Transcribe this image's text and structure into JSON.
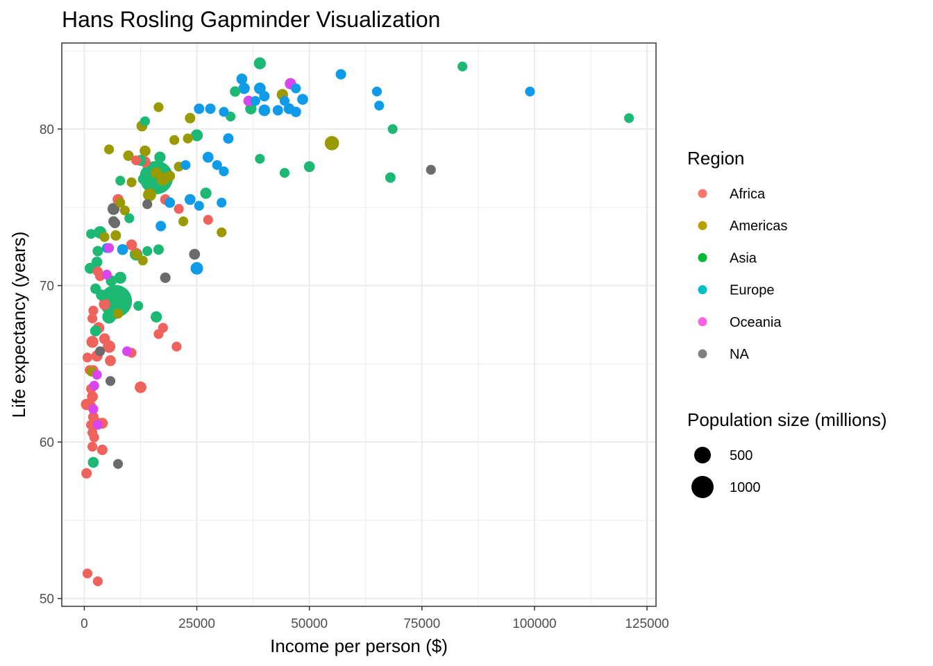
{
  "chart_data": {
    "type": "scatter",
    "title": "Hans Rosling Gapminder Visualization",
    "xlabel": "Income per person ($)",
    "ylabel": "Life expectancy (years)",
    "xlim": [
      -5000,
      127000
    ],
    "ylim": [
      49.5,
      85.5
    ],
    "xticks": [
      0,
      25000,
      50000,
      75000,
      100000,
      125000
    ],
    "yticks": [
      50,
      60,
      70,
      80
    ],
    "grid": true,
    "legend_position": "right",
    "color_legend": {
      "title": "Region",
      "entries": [
        {
          "name": "Africa",
          "color": "#F8766D"
        },
        {
          "name": "Americas",
          "color": "#B79F00"
        },
        {
          "name": "Asia",
          "color": "#00BA38"
        },
        {
          "name": "Europe",
          "color": "#00BFC4"
        },
        {
          "name": "Oceania",
          "color": "#F564E3"
        },
        {
          "name": "NA",
          "color": "#808080"
        }
      ]
    },
    "size_legend": {
      "title": "Population size (millions)",
      "entries": [
        500,
        1000
      ]
    },
    "series": [
      {
        "name": "Africa",
        "color": "#F0625C",
        "points": [
          [
            700,
            51.6,
            5
          ],
          [
            3000,
            51.1,
            5
          ],
          [
            500,
            58.0,
            10
          ],
          [
            1800,
            59.7,
            5
          ],
          [
            4000,
            59.5,
            10
          ],
          [
            1500,
            61.1,
            5
          ],
          [
            2000,
            61.0,
            5
          ],
          [
            2200,
            60.3,
            5
          ],
          [
            1800,
            60.6,
            5
          ],
          [
            2500,
            61.3,
            10
          ],
          [
            4000,
            61.2,
            15
          ],
          [
            500,
            62.4,
            20
          ],
          [
            2000,
            61.6,
            10
          ],
          [
            1500,
            62.3,
            5
          ],
          [
            1800,
            62.9,
            15
          ],
          [
            1500,
            63.4,
            5
          ],
          [
            12500,
            63.5,
            25
          ],
          [
            2000,
            64.6,
            5
          ],
          [
            1200,
            64.6,
            5
          ],
          [
            700,
            65.4,
            5
          ],
          [
            2800,
            65.5,
            20
          ],
          [
            5800,
            65.2,
            15
          ],
          [
            10500,
            65.7,
            5
          ],
          [
            1800,
            66.4,
            30
          ],
          [
            4500,
            66.6,
            15
          ],
          [
            5500,
            66.1,
            40
          ],
          [
            16500,
            66.9,
            5
          ],
          [
            20500,
            66.1,
            5
          ],
          [
            3200,
            67.3,
            20
          ],
          [
            1800,
            67.9,
            5
          ],
          [
            2000,
            68.4,
            5
          ],
          [
            4500,
            68.8,
            20
          ],
          [
            17500,
            67.3,
            5
          ],
          [
            3000,
            70.9,
            5
          ],
          [
            3500,
            70.6,
            5
          ],
          [
            11500,
            72.1,
            5
          ],
          [
            10500,
            72.6,
            15
          ],
          [
            7500,
            75.5,
            15
          ],
          [
            21000,
            74.9,
            5
          ],
          [
            18000,
            75.5,
            10
          ],
          [
            27500,
            74.2,
            5
          ],
          [
            11500,
            78.0,
            5
          ],
          [
            13500,
            77.9,
            15
          ]
        ]
      },
      {
        "name": "Americas",
        "color": "#9A9A00",
        "points": [
          [
            1600,
            64.5,
            5
          ],
          [
            7500,
            68.2,
            5
          ],
          [
            13000,
            71.6,
            5
          ],
          [
            11500,
            72.0,
            5
          ],
          [
            7000,
            73.2,
            10
          ],
          [
            4500,
            73.1,
            5
          ],
          [
            22000,
            74.1,
            5
          ],
          [
            30500,
            73.4,
            5
          ],
          [
            8000,
            75.3,
            5
          ],
          [
            9000,
            74.8,
            5
          ],
          [
            14500,
            75.8,
            50
          ],
          [
            17500,
            76.8,
            40
          ],
          [
            19000,
            77.0,
            10
          ],
          [
            10500,
            76.6,
            5
          ],
          [
            16000,
            77.2,
            15
          ],
          [
            9800,
            78.3,
            10
          ],
          [
            13500,
            78.6,
            15
          ],
          [
            12800,
            80.2,
            15
          ],
          [
            20000,
            79.3,
            5
          ],
          [
            21000,
            77.6,
            5
          ],
          [
            23000,
            79.4,
            5
          ],
          [
            23500,
            80.7,
            10
          ],
          [
            16500,
            81.4,
            5
          ],
          [
            5500,
            78.7,
            5
          ],
          [
            44000,
            82.2,
            20
          ],
          [
            55000,
            79.1,
            80
          ]
        ]
      },
      {
        "name": "Asia",
        "color": "#1DB873",
        "points": [
          [
            2000,
            58.7,
            15
          ],
          [
            1300,
            71.1,
            15
          ],
          [
            2800,
            71.5,
            15
          ],
          [
            1500,
            73.3,
            5
          ],
          [
            3500,
            73.4,
            40
          ],
          [
            3000,
            72.2,
            10
          ],
          [
            6000,
            70.3,
            15
          ],
          [
            8000,
            70.5,
            30
          ],
          [
            2500,
            69.8,
            10
          ],
          [
            3800,
            69.4,
            15
          ],
          [
            2500,
            67.1,
            15
          ],
          [
            6500,
            68.2,
            30
          ],
          [
            7000,
            69.0,
            1300
          ],
          [
            5500,
            68.0,
            60
          ],
          [
            11500,
            72.0,
            40
          ],
          [
            12000,
            68.7,
            5
          ],
          [
            16000,
            68.0,
            20
          ],
          [
            16500,
            72.3,
            10
          ],
          [
            14000,
            72.2,
            5
          ],
          [
            10000,
            74.3,
            5
          ],
          [
            16000,
            76.9,
            1400
          ],
          [
            13000,
            76.8,
            5
          ],
          [
            8000,
            76.7,
            5
          ],
          [
            12500,
            78.0,
            15
          ],
          [
            16800,
            78.2,
            20
          ],
          [
            25000,
            79.6,
            30
          ],
          [
            27000,
            75.9,
            20
          ],
          [
            39000,
            78.1,
            5
          ],
          [
            44500,
            77.2,
            5
          ],
          [
            50000,
            77.6,
            15
          ],
          [
            68000,
            76.9,
            10
          ],
          [
            68500,
            80.0,
            5
          ],
          [
            84000,
            84.0,
            5
          ],
          [
            121000,
            80.7,
            5
          ],
          [
            32500,
            80.8,
            5
          ],
          [
            33500,
            82.4,
            10
          ],
          [
            37000,
            81.3,
            20
          ],
          [
            39000,
            84.2,
            30
          ],
          [
            13500,
            80.5,
            5
          ]
        ]
      },
      {
        "name": "Europe",
        "color": "#0F9BE8",
        "points": [
          [
            8500,
            72.3,
            15
          ],
          [
            5000,
            72.4,
            5
          ],
          [
            17000,
            73.8,
            10
          ],
          [
            19000,
            75.3,
            10
          ],
          [
            23500,
            75.5,
            15
          ],
          [
            25000,
            71.1,
            40
          ],
          [
            25500,
            75.1,
            5
          ],
          [
            30500,
            75.3,
            5
          ],
          [
            27500,
            78.2,
            15
          ],
          [
            29500,
            77.7,
            5
          ],
          [
            31000,
            77.3,
            5
          ],
          [
            32000,
            79.4,
            10
          ],
          [
            22500,
            77.7,
            5
          ],
          [
            25500,
            81.3,
            10
          ],
          [
            28000,
            81.3,
            10
          ],
          [
            31000,
            81.1,
            5
          ],
          [
            35000,
            83.2,
            15
          ],
          [
            35500,
            82.6,
            20
          ],
          [
            38000,
            81.8,
            5
          ],
          [
            39000,
            82.6,
            25
          ],
          [
            40000,
            82.1,
            10
          ],
          [
            40000,
            81.2,
            25
          ],
          [
            43000,
            81.2,
            10
          ],
          [
            44500,
            81.8,
            5
          ],
          [
            45500,
            81.3,
            15
          ],
          [
            47000,
            82.6,
            5
          ],
          [
            47000,
            81.1,
            10
          ],
          [
            48500,
            81.9,
            15
          ],
          [
            57000,
            83.5,
            10
          ],
          [
            65000,
            82.4,
            5
          ],
          [
            65500,
            81.5,
            5
          ],
          [
            99000,
            82.4,
            5
          ]
        ]
      },
      {
        "name": "Oceania",
        "color": "#D946EF",
        "points": [
          [
            5000,
            70.7,
            5
          ],
          [
            5500,
            72.4,
            5
          ],
          [
            2800,
            64.3,
            5
          ],
          [
            2200,
            63.6,
            5
          ],
          [
            2000,
            62.1,
            5
          ],
          [
            3000,
            61.1,
            5
          ],
          [
            9500,
            65.8,
            5
          ],
          [
            36500,
            81.8,
            10
          ],
          [
            45800,
            82.9,
            20
          ]
        ]
      },
      {
        "name": "NA",
        "color": "#6B6B6B",
        "points": [
          [
            3500,
            65.8,
            5
          ],
          [
            5800,
            63.9,
            5
          ],
          [
            7500,
            58.6,
            5
          ],
          [
            6500,
            74.1,
            10
          ],
          [
            6800,
            74.0,
            10
          ],
          [
            6500,
            74.9,
            30
          ],
          [
            14000,
            75.2,
            5
          ],
          [
            18000,
            70.5,
            10
          ],
          [
            24500,
            72.0,
            15
          ],
          [
            77000,
            77.4,
            5
          ]
        ]
      }
    ]
  }
}
